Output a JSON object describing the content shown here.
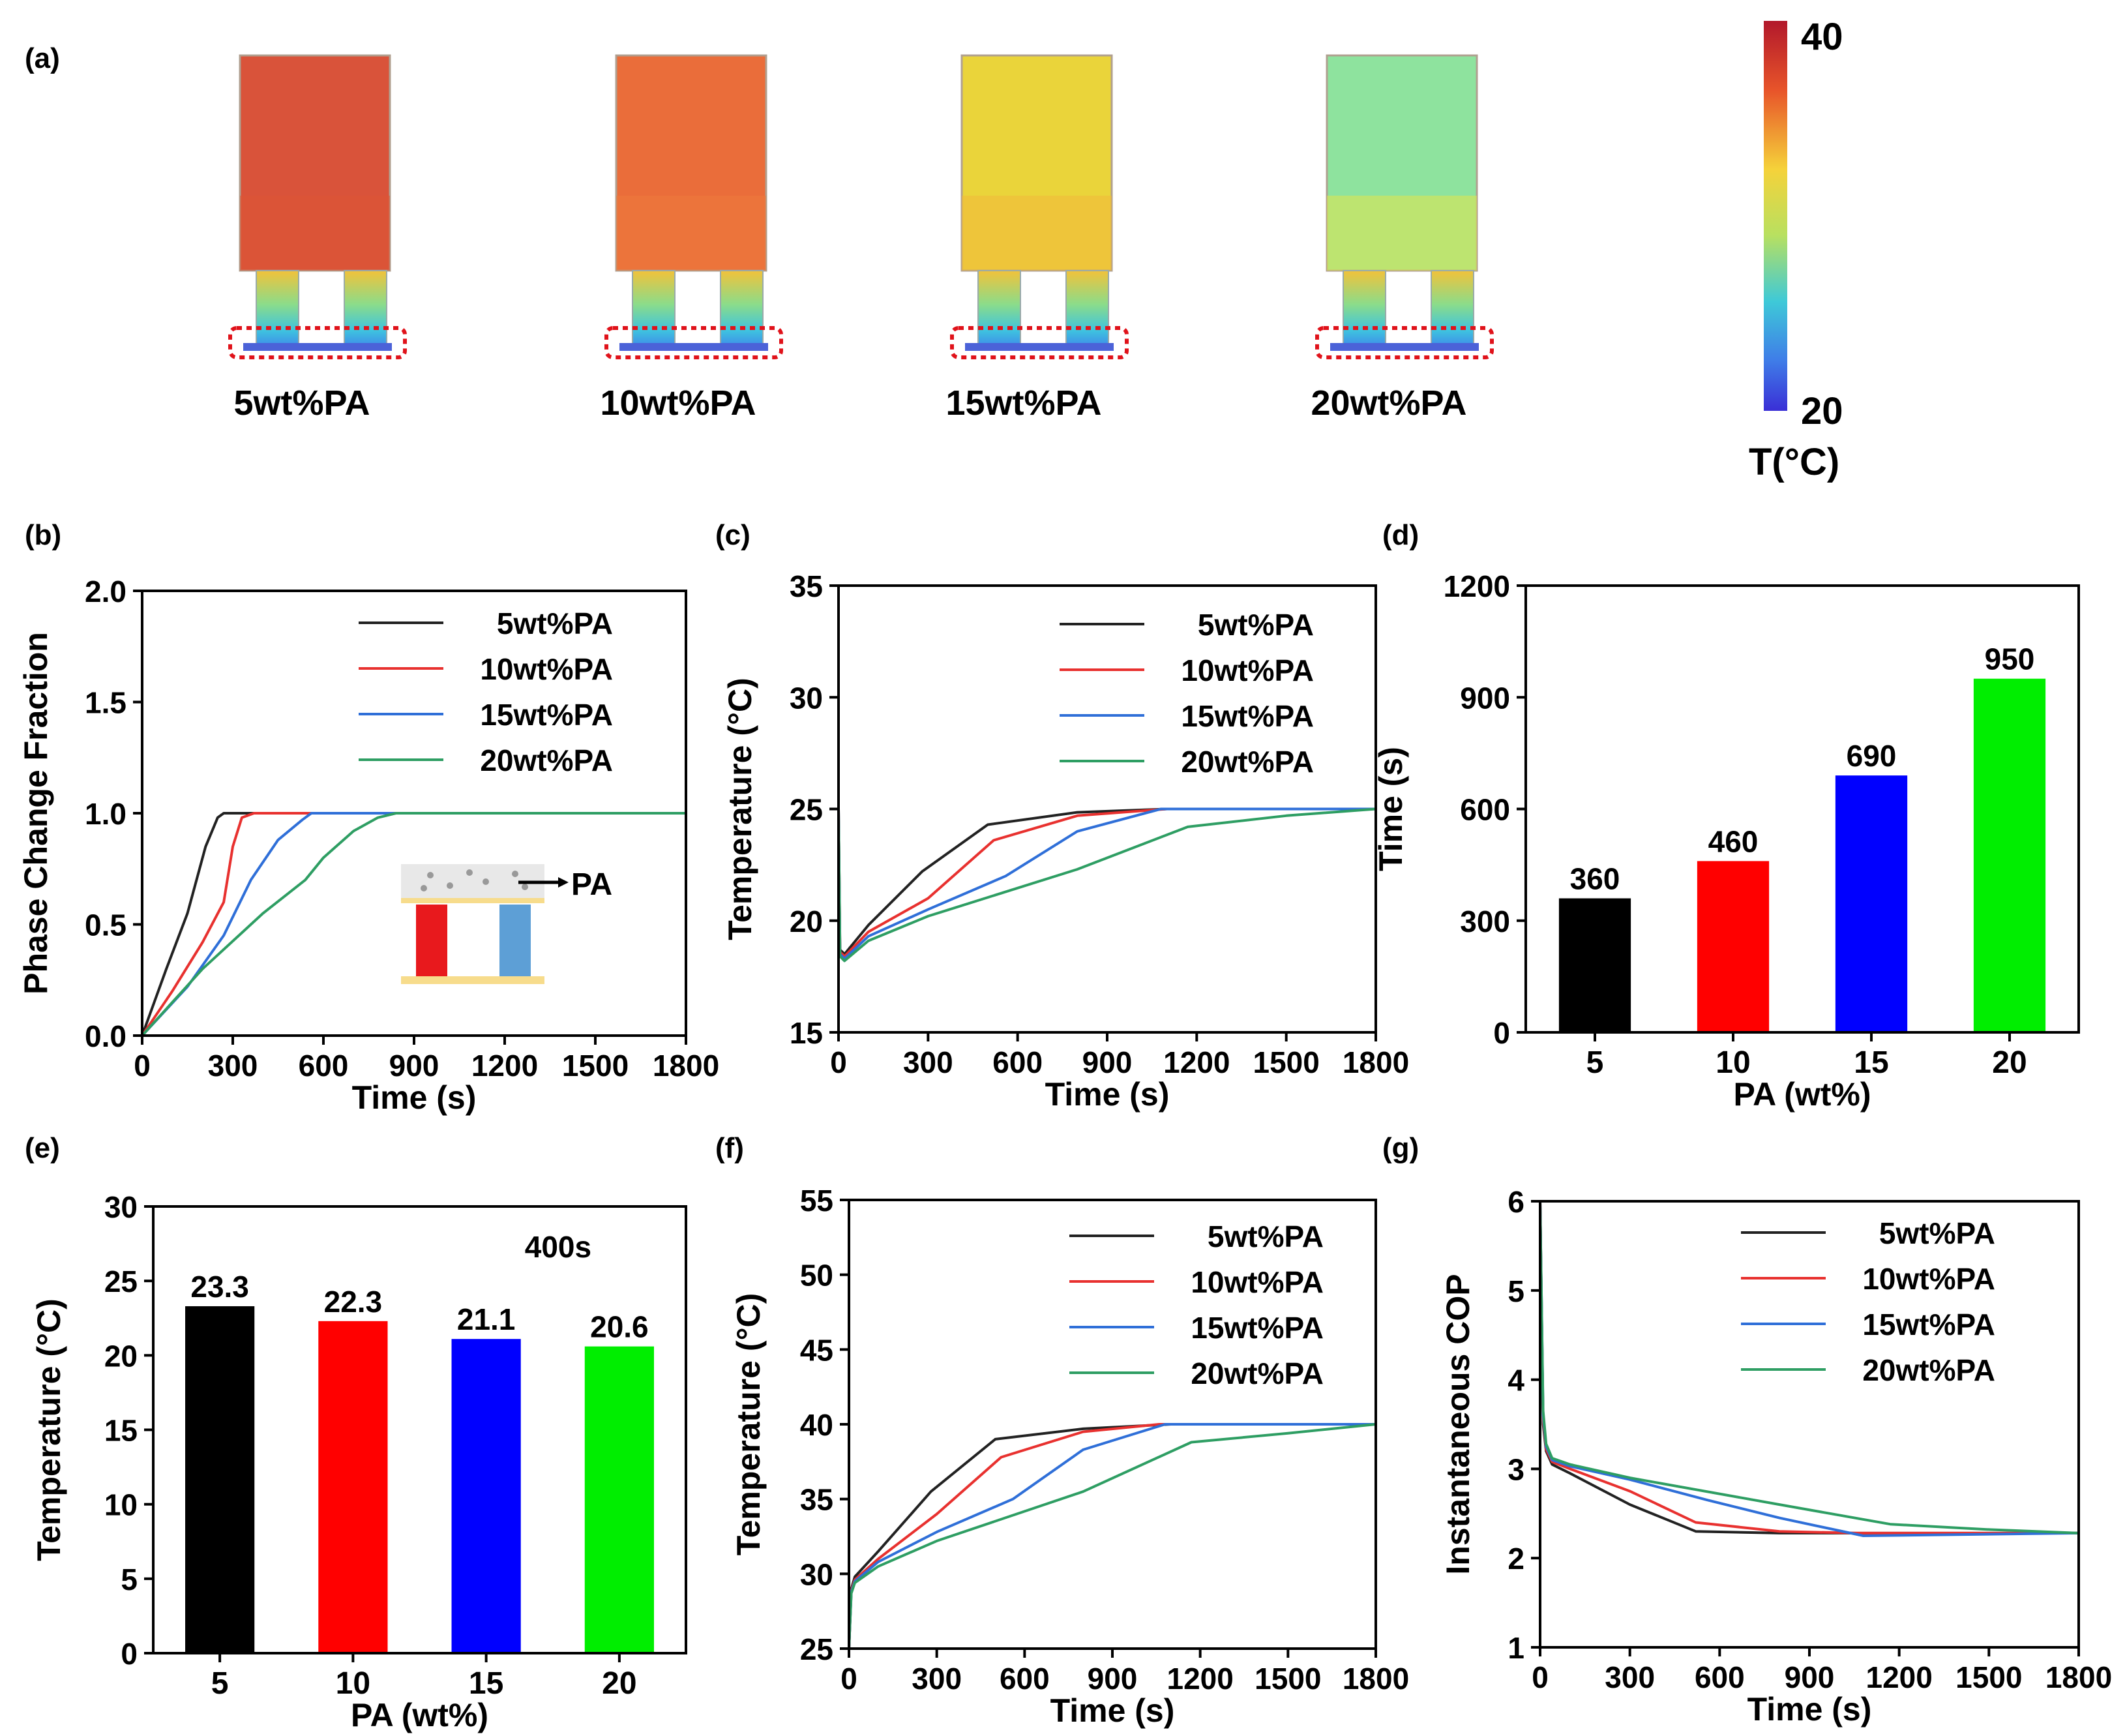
{
  "panel_a": {
    "label": "(a)",
    "samples": [
      {
        "label": "5wt%PA",
        "top_color": "#d9533a",
        "upper_leg_color": "#f2c23a",
        "top_color2": "#dd5635"
      },
      {
        "label": "10wt%PA",
        "top_color": "#ea6d3a",
        "upper_leg_color": "#f4d23e",
        "top_color2": "#ec7a3c"
      },
      {
        "label": "15wt%PA",
        "top_color": "#ead43a",
        "upper_leg_color": "#e9e748",
        "top_color2": "#f0b83a"
      },
      {
        "label": "20wt%PA",
        "top_color": "#8ee39e",
        "upper_leg_color": "#6fd8b4",
        "top_color2": "#e3e64a"
      }
    ],
    "colorbar": {
      "max": "40",
      "min": "20",
      "title": "T(°C)"
    }
  },
  "chart_data": [
    {
      "panel": "(b)",
      "type": "line",
      "xlabel": "Time (s)",
      "ylabel": "Phase Change Fraction",
      "xlim": [
        0,
        1800
      ],
      "ylim": [
        0,
        2.0
      ],
      "xticks": [
        0,
        300,
        600,
        900,
        1200,
        1500,
        1800
      ],
      "yticks": [
        0.0,
        0.5,
        1.0,
        1.5,
        2.0
      ],
      "ytick_labels": [
        "0.0",
        "0.5",
        "1.0",
        "1.5",
        "2.0"
      ],
      "inset_label": "PA",
      "series": [
        {
          "name": "5wt%PA",
          "color": "#222222",
          "x": [
            0,
            80,
            150,
            210,
            250,
            270,
            290,
            1800
          ],
          "y": [
            0,
            0.3,
            0.55,
            0.85,
            0.98,
            1.0,
            1.0,
            1.0
          ]
        },
        {
          "name": "10wt%PA",
          "color": "#e8312f",
          "x": [
            0,
            100,
            200,
            270,
            300,
            330,
            370,
            1800
          ],
          "y": [
            0,
            0.2,
            0.42,
            0.6,
            0.85,
            0.98,
            1.0,
            1.0
          ]
        },
        {
          "name": "15wt%PA",
          "color": "#2f6fd8",
          "x": [
            0,
            150,
            270,
            360,
            450,
            530,
            560,
            600,
            1800
          ],
          "y": [
            0,
            0.22,
            0.45,
            0.7,
            0.88,
            0.97,
            1.0,
            1.0,
            1.0
          ]
        },
        {
          "name": "20wt%PA",
          "color": "#2e9e63",
          "x": [
            0,
            200,
            400,
            540,
            600,
            700,
            780,
            840,
            1800
          ],
          "y": [
            0,
            0.3,
            0.55,
            0.7,
            0.8,
            0.92,
            0.98,
            1.0,
            1.0
          ]
        }
      ]
    },
    {
      "panel": "(c)",
      "type": "line",
      "xlabel": "Time (s)",
      "ylabel": "Temperature (°C)",
      "xlim": [
        0,
        1800
      ],
      "ylim": [
        15,
        35
      ],
      "xticks": [
        0,
        300,
        600,
        900,
        1200,
        1500,
        1800
      ],
      "yticks": [
        15,
        20,
        25,
        30,
        35
      ],
      "ytick_labels": [
        "15",
        "20",
        "25",
        "30",
        "35"
      ],
      "series": [
        {
          "name": "5wt%PA",
          "color": "#222222",
          "x": [
            0,
            5,
            20,
            100,
            280,
            500,
            800,
            1100,
            1800
          ],
          "y": [
            25,
            18.7,
            18.5,
            19.8,
            22.2,
            24.3,
            24.85,
            25.0,
            25.0
          ]
        },
        {
          "name": "10wt%PA",
          "color": "#e8312f",
          "x": [
            0,
            5,
            20,
            100,
            300,
            520,
            800,
            1100,
            1800
          ],
          "y": [
            25,
            18.6,
            18.4,
            19.5,
            21.0,
            23.6,
            24.7,
            25.0,
            25.0
          ]
        },
        {
          "name": "15wt%PA",
          "color": "#2f6fd8",
          "x": [
            0,
            5,
            20,
            100,
            300,
            560,
            800,
            1080,
            1800
          ],
          "y": [
            25,
            18.5,
            18.3,
            19.3,
            20.5,
            22.0,
            24.0,
            25.0,
            25.0
          ]
        },
        {
          "name": "20wt%PA",
          "color": "#2e9e63",
          "x": [
            0,
            5,
            20,
            100,
            300,
            800,
            1170,
            1500,
            1800
          ],
          "y": [
            25,
            18.4,
            18.2,
            19.1,
            20.2,
            22.3,
            24.2,
            24.7,
            25.0
          ]
        }
      ]
    },
    {
      "panel": "(d)",
      "type": "bar",
      "xlabel": "PA (wt%)",
      "ylabel": "Time (s)",
      "ylim": [
        0,
        1200
      ],
      "yticks": [
        0,
        300,
        600,
        900,
        1200
      ],
      "categories": [
        "5",
        "10",
        "15",
        "20"
      ],
      "values": [
        360,
        460,
        690,
        950
      ],
      "value_labels": [
        "360",
        "460",
        "690",
        "950"
      ],
      "colors": [
        "#000000",
        "#ff0000",
        "#0000ff",
        "#00ee00"
      ]
    },
    {
      "panel": "(e)",
      "type": "bar",
      "xlabel": "PA (wt%)",
      "ylabel": "Temperature (°C)",
      "annotation": "400s",
      "ylim": [
        0,
        30
      ],
      "yticks": [
        0,
        5,
        10,
        15,
        20,
        25,
        30
      ],
      "categories": [
        "5",
        "10",
        "15",
        "20"
      ],
      "values": [
        23.3,
        22.3,
        21.1,
        20.6
      ],
      "value_labels": [
        "23.3",
        "22.3",
        "21.1",
        "20.6"
      ],
      "colors": [
        "#000000",
        "#ff0000",
        "#0000ff",
        "#00ee00"
      ]
    },
    {
      "panel": "(f)",
      "type": "line",
      "xlabel": "Time (s)",
      "ylabel": "Temperature (°C)",
      "xlim": [
        0,
        1800
      ],
      "ylim": [
        25,
        55
      ],
      "xticks": [
        0,
        300,
        600,
        900,
        1200,
        1500,
        1800
      ],
      "yticks": [
        25,
        30,
        35,
        40,
        45,
        50,
        55
      ],
      "ytick_labels": [
        "25",
        "30",
        "35",
        "40",
        "45",
        "50",
        "55"
      ],
      "series": [
        {
          "name": "5wt%PA",
          "color": "#222222",
          "x": [
            0,
            8,
            20,
            100,
            280,
            500,
            800,
            1100,
            1800
          ],
          "y": [
            25,
            29.0,
            29.8,
            31.5,
            35.5,
            39.0,
            39.7,
            40.0,
            40.0
          ]
        },
        {
          "name": "10wt%PA",
          "color": "#e8312f",
          "x": [
            0,
            8,
            20,
            100,
            300,
            520,
            800,
            1060,
            1800
          ],
          "y": [
            25,
            28.9,
            29.6,
            31.0,
            34.0,
            37.8,
            39.5,
            40.0,
            40.0
          ]
        },
        {
          "name": "15wt%PA",
          "color": "#2f6fd8",
          "x": [
            0,
            8,
            20,
            100,
            300,
            560,
            800,
            1080,
            1800
          ],
          "y": [
            25,
            28.8,
            29.5,
            30.8,
            32.8,
            35.0,
            38.3,
            40.0,
            40.0
          ]
        },
        {
          "name": "20wt%PA",
          "color": "#2e9e63",
          "x": [
            0,
            8,
            20,
            100,
            300,
            800,
            1170,
            1500,
            1800
          ],
          "y": [
            25,
            28.7,
            29.4,
            30.5,
            32.2,
            35.5,
            38.8,
            39.4,
            40.0
          ]
        }
      ]
    },
    {
      "panel": "(g)",
      "type": "line",
      "xlabel": "Time (s)",
      "ylabel": "Instantaneous COP",
      "xlim": [
        0,
        1800
      ],
      "ylim": [
        1,
        6
      ],
      "xticks": [
        0,
        300,
        600,
        900,
        1200,
        1500,
        1800
      ],
      "yticks": [
        1,
        2,
        3,
        4,
        5,
        6
      ],
      "ytick_labels": [
        "1",
        "2",
        "3",
        "4",
        "5",
        "6"
      ],
      "series": [
        {
          "name": "5wt%PA",
          "color": "#222222",
          "x": [
            0,
            10,
            20,
            40,
            100,
            300,
            520,
            800,
            1100,
            1800
          ],
          "y": [
            6,
            3.5,
            3.2,
            3.05,
            2.95,
            2.6,
            2.3,
            2.28,
            2.28,
            2.28
          ]
        },
        {
          "name": "10wt%PA",
          "color": "#e8312f",
          "x": [
            0,
            10,
            20,
            40,
            100,
            300,
            520,
            800,
            1060,
            1800
          ],
          "y": [
            6,
            3.55,
            3.22,
            3.08,
            3.0,
            2.75,
            2.4,
            2.3,
            2.28,
            2.28
          ]
        },
        {
          "name": "15wt%PA",
          "color": "#2f6fd8",
          "x": [
            0,
            10,
            20,
            40,
            100,
            300,
            560,
            800,
            1080,
            1800
          ],
          "y": [
            6,
            3.6,
            3.25,
            3.1,
            3.03,
            2.88,
            2.65,
            2.45,
            2.25,
            2.28
          ]
        },
        {
          "name": "20wt%PA",
          "color": "#2e9e63",
          "x": [
            0,
            10,
            20,
            40,
            100,
            300,
            800,
            1170,
            1500,
            1800
          ],
          "y": [
            6,
            3.65,
            3.28,
            3.12,
            3.05,
            2.9,
            2.6,
            2.38,
            2.32,
            2.28
          ]
        }
      ]
    }
  ]
}
